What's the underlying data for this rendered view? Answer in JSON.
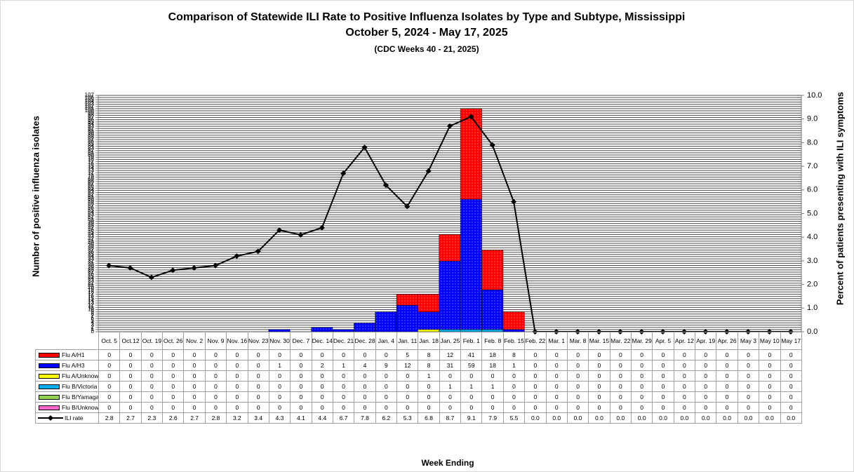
{
  "chart_data": {
    "type": "bar",
    "stacked": true,
    "title": "Comparison of Statewide ILI Rate to Positive Influenza Isolates by Type and Subtype, Mississippi",
    "subtitle": "October 5, 2024 - May 17, 2025",
    "note": "(CDC Weeks 40 - 21, 2025)",
    "xlabel": "Week Ending",
    "ylabel": "Number of positive influenza isolates",
    "y2label": "Percent of patients presenting with ILI symptoms",
    "grid": true,
    "categories": [
      "Oct. 5",
      "Oct.12",
      "Oct. 19",
      "Oct. 26",
      "Nov. 2",
      "Nov. 9",
      "Nov. 16",
      "Nov. 23",
      "Nov. 30",
      "Dec. 7",
      "Dec. 14",
      "Dec. 21",
      "Dec. 28",
      "Jan. 4",
      "Jan. 11",
      "Jan. 18",
      "Jan. 25",
      "Feb. 1",
      "Feb. 8",
      "Feb. 15",
      "Feb. 22",
      "Mar. 1",
      "Mar. 8",
      "Mar. 15",
      "Mar. 22",
      "Mar. 29",
      "Apr. 5",
      "Apr. 12",
      "Apr. 19",
      "Apr. 26",
      "May 3",
      "May 10",
      "May 17"
    ],
    "series": [
      {
        "name": "Flu A/H1",
        "color": "#ff0000",
        "values": [
          0,
          0,
          0,
          0,
          0,
          0,
          0,
          0,
          0,
          0,
          0,
          0,
          0,
          0,
          5,
          8,
          12,
          41,
          18,
          8,
          0,
          0,
          0,
          0,
          0,
          0,
          0,
          0,
          0,
          0,
          0,
          0,
          0
        ]
      },
      {
        "name": "Flu A/H3",
        "color": "#0000ff",
        "values": [
          0,
          0,
          0,
          0,
          0,
          0,
          0,
          0,
          1,
          0,
          2,
          1,
          4,
          9,
          12,
          8,
          31,
          59,
          18,
          1,
          0,
          0,
          0,
          0,
          0,
          0,
          0,
          0,
          0,
          0,
          0,
          0,
          0
        ]
      },
      {
        "name": "Flu A/Unknown",
        "color": "#ffff00",
        "values": [
          0,
          0,
          0,
          0,
          0,
          0,
          0,
          0,
          0,
          0,
          0,
          0,
          0,
          0,
          0,
          1,
          0,
          0,
          0,
          0,
          0,
          0,
          0,
          0,
          0,
          0,
          0,
          0,
          0,
          0,
          0,
          0,
          0
        ]
      },
      {
        "name": "Flu B/Victoria",
        "color": "#00b0f0",
        "values": [
          0,
          0,
          0,
          0,
          0,
          0,
          0,
          0,
          0,
          0,
          0,
          0,
          0,
          0,
          0,
          0,
          1,
          1,
          1,
          0,
          0,
          0,
          0,
          0,
          0,
          0,
          0,
          0,
          0,
          0,
          0,
          0,
          0
        ]
      },
      {
        "name": "Flu B/Yamagata",
        "color": "#92d050",
        "values": [
          0,
          0,
          0,
          0,
          0,
          0,
          0,
          0,
          0,
          0,
          0,
          0,
          0,
          0,
          0,
          0,
          0,
          0,
          0,
          0,
          0,
          0,
          0,
          0,
          0,
          0,
          0,
          0,
          0,
          0,
          0,
          0,
          0
        ]
      },
      {
        "name": "Flu B/Unknown",
        "color": "#ff66cc",
        "values": [
          0,
          0,
          0,
          0,
          0,
          0,
          0,
          0,
          0,
          0,
          0,
          0,
          0,
          0,
          0,
          0,
          0,
          0,
          0,
          0,
          0,
          0,
          0,
          0,
          0,
          0,
          0,
          0,
          0,
          0,
          0,
          0,
          0
        ]
      },
      {
        "name": "ILI rate",
        "type": "line",
        "axis": "y2",
        "color": "#000000",
        "values": [
          2.8,
          2.7,
          2.3,
          2.6,
          2.7,
          2.8,
          3.2,
          3.4,
          4.3,
          4.1,
          4.4,
          6.7,
          7.8,
          6.2,
          5.3,
          6.8,
          8.7,
          9.1,
          7.9,
          5.5,
          0,
          0,
          0,
          0,
          0,
          0,
          0,
          0,
          0,
          0,
          0,
          0,
          0
        ],
        "value_labels": [
          "2.8",
          "2.7",
          "2.3",
          "2.6",
          "2.7",
          "2.8",
          "3.2",
          "3.4",
          "4.3",
          "4.1",
          "4.4",
          "6.7",
          "7.8",
          "6.2",
          "5.3",
          "6.8",
          "8.7",
          "9.1",
          "7.9",
          "5.5",
          "0.0",
          "0.0",
          "0.0",
          "0.0",
          "0.0",
          "0.0",
          "0.0",
          "0.0",
          "0.0",
          "0.0",
          "0.0",
          "0.0",
          "0.0"
        ]
      }
    ],
    "ylim": [
      0,
      107
    ],
    "yticks": [
      0,
      1,
      2,
      3,
      4,
      5,
      6,
      7,
      8,
      9,
      10,
      11,
      12,
      13,
      14,
      15,
      16,
      17,
      18,
      19,
      20,
      21,
      22,
      23,
      24,
      25,
      26,
      27,
      28,
      29,
      30,
      31,
      32,
      33,
      34,
      35,
      36,
      37,
      38,
      39,
      40,
      41,
      42,
      43,
      44,
      45,
      46,
      47,
      48,
      49,
      50,
      51,
      52,
      53,
      54,
      55,
      56,
      57,
      58,
      59,
      60,
      61,
      62,
      63,
      64,
      65,
      66,
      67,
      68,
      69,
      70,
      71,
      72,
      73,
      74,
      75,
      76,
      77,
      78,
      79,
      80,
      81,
      82,
      83,
      84,
      85,
      86,
      87,
      88,
      89,
      90,
      91,
      92,
      93,
      94,
      95,
      96,
      97,
      98,
      99,
      100,
      101,
      102,
      103,
      104,
      105,
      106,
      107
    ],
    "y2lim": [
      0,
      10
    ],
    "y2ticks": [
      {
        "value": 0,
        "label": "0.0"
      },
      {
        "value": 1,
        "label": "1.0"
      },
      {
        "value": 2,
        "label": "2.0"
      },
      {
        "value": 3,
        "label": "3.0"
      },
      {
        "value": 4,
        "label": "4.0"
      },
      {
        "value": 5,
        "label": "5.0"
      },
      {
        "value": 6,
        "label": "6.0"
      },
      {
        "value": 7,
        "label": "7.0"
      },
      {
        "value": 8,
        "label": "8.0"
      },
      {
        "value": 9,
        "label": "9.0"
      },
      {
        "value": 10,
        "label": "10.0"
      }
    ]
  }
}
